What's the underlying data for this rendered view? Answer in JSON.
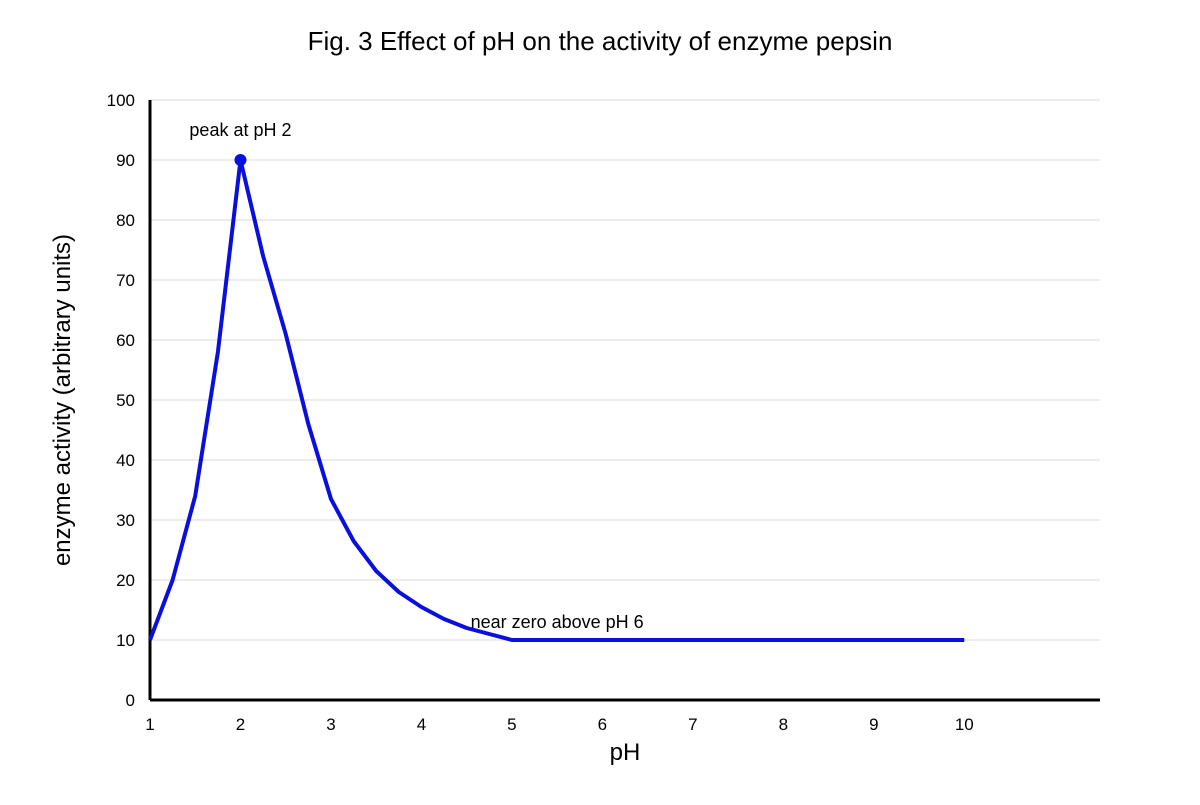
{
  "chart_data": {
    "type": "line",
    "title": "Fig. 3 Effect of pH on the activity of enzyme pepsin",
    "xlabel": "pH",
    "ylabel": "enzyme activity (arbitrary units)",
    "xlim": [
      1,
      11.5
    ],
    "ylim": [
      0,
      100
    ],
    "x_ticks": [
      "1",
      "2",
      "3",
      "4",
      "5",
      "6",
      "7",
      "8",
      "9",
      "10"
    ],
    "y_ticks": [
      "0",
      "10",
      "20",
      "30",
      "40",
      "50",
      "60",
      "70",
      "80",
      "90",
      "100"
    ],
    "grid": true,
    "legend": "none",
    "series": [
      {
        "color": "#0a10dc",
        "x": [
          1,
          1.25,
          1.5,
          1.75,
          2,
          2.25,
          2.5,
          2.75,
          3,
          3.25,
          3.5,
          3.75,
          4,
          4.25,
          4.5,
          4.75,
          5,
          5.5,
          6,
          7,
          8,
          9,
          10
        ],
        "y": [
          10,
          20,
          34,
          58,
          90,
          74,
          61,
          46,
          33.5,
          26.5,
          21.5,
          18,
          15.5,
          13.5,
          12,
          11,
          10,
          10,
          10,
          10,
          10,
          10,
          10
        ]
      }
    ],
    "markers": [
      {
        "x": 2,
        "y": 90,
        "color": "#0a10dc"
      }
    ],
    "annotations": [
      {
        "text": "peak at pH 2",
        "x": 2,
        "y": 95
      },
      {
        "text": "near zero above pH 6",
        "x": 5.5,
        "y": 13
      }
    ]
  }
}
